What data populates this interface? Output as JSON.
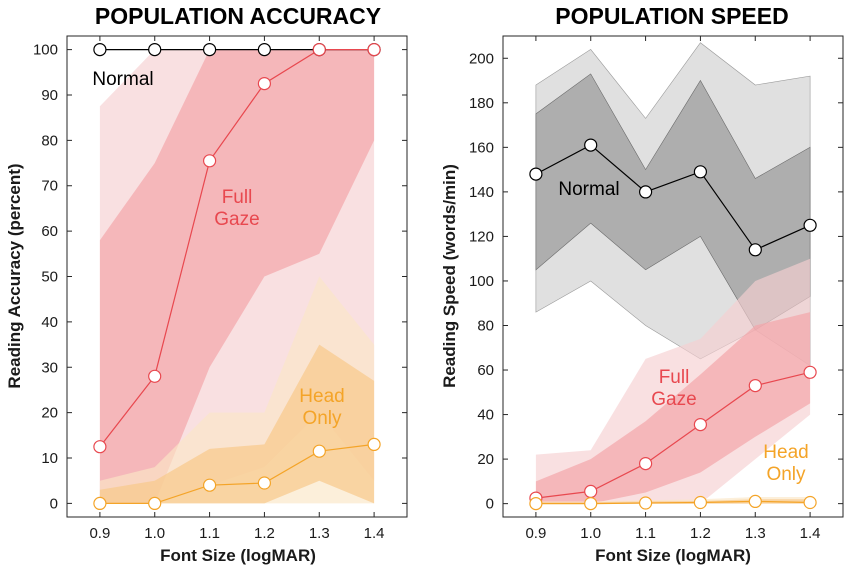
{
  "colors": {
    "normal": "#000000",
    "normal_band_outer": "#dadada",
    "normal_band_inner": "#a8a8a8",
    "full_gaze": "#e8484f",
    "full_gaze_band_outer": "#f6cfd1",
    "full_gaze_band_inner": "#f3a5a9",
    "head_only": "#f4a428",
    "head_only_band_outer": "#fbe6c6",
    "head_only_band_inner": "#f8c98a"
  },
  "chart_data": [
    {
      "type": "line",
      "title": "POPULATION ACCURACY",
      "xlabel": "Font Size (logMAR)",
      "ylabel": "Reading Accuracy (percent)",
      "xlim": [
        0.84,
        1.46
      ],
      "ylim": [
        -3,
        103
      ],
      "xticks": [
        "0.9",
        "1.0",
        "1.1",
        "1.2",
        "1.3",
        "1.4"
      ],
      "yticks": [
        "0",
        "10",
        "20",
        "30",
        "40",
        "50",
        "60",
        "70",
        "80",
        "90",
        "100"
      ],
      "x": [
        0.9,
        1.0,
        1.1,
        1.2,
        1.3,
        1.4
      ],
      "series": [
        {
          "name": "Normal",
          "label": "Normal",
          "values": [
            100,
            100,
            100,
            100,
            100,
            100
          ],
          "band_outer": {
            "lower": [
              100,
              100,
              100,
              100,
              100,
              100
            ],
            "upper": [
              100,
              100,
              100,
              100,
              100,
              100
            ]
          },
          "band_inner": {
            "lower": [
              100,
              100,
              100,
              100,
              100,
              100
            ],
            "upper": [
              100,
              100,
              100,
              100,
              100,
              100
            ]
          }
        },
        {
          "name": "Full Gaze",
          "label": "Full\nGaze",
          "values": [
            12.5,
            28,
            75.5,
            92.5,
            100,
            100
          ],
          "band_outer": {
            "lower": [
              0,
              0,
              4,
              8,
              20,
              5
            ],
            "upper": [
              87.5,
              100,
              100,
              100,
              100,
              100
            ]
          },
          "band_inner": {
            "lower": [
              0,
              0,
              30,
              50,
              55,
              80
            ],
            "upper": [
              58,
              75,
              100,
              100,
              100,
              100
            ]
          }
        },
        {
          "name": "Head Only",
          "label": "Head\nOnly",
          "values": [
            0,
            0,
            4,
            4.5,
            11.5,
            13
          ],
          "band_outer": {
            "lower": [
              0,
              0,
              0,
              0,
              0,
              0
            ],
            "upper": [
              5,
              8,
              20,
              20,
              50,
              35
            ]
          },
          "band_inner": {
            "lower": [
              0,
              0,
              0,
              0,
              5,
              0
            ],
            "upper": [
              3,
              5,
              12,
              13,
              35,
              27
            ]
          }
        }
      ]
    },
    {
      "type": "line",
      "title": "POPULATION SPEED",
      "xlabel": "Font Size (logMAR)",
      "ylabel": "Reading Speed (words/min)",
      "xlim": [
        0.84,
        1.46
      ],
      "ylim": [
        -6,
        210
      ],
      "xticks": [
        "0.9",
        "1.0",
        "1.1",
        "1.2",
        "1.3",
        "1.4"
      ],
      "yticks": [
        "0",
        "20",
        "40",
        "60",
        "80",
        "100",
        "120",
        "140",
        "160",
        "180",
        "200"
      ],
      "x": [
        0.9,
        1.0,
        1.1,
        1.2,
        1.3,
        1.4
      ],
      "series": [
        {
          "name": "Normal",
          "label": "Normal",
          "values": [
            148,
            161,
            140,
            149,
            114,
            125
          ],
          "band_outer": {
            "lower": [
              86,
              100,
              80,
              65,
              78,
              62
            ],
            "upper": [
              188,
              204,
              173,
              207,
              188,
              192
            ]
          },
          "band_inner": {
            "lower": [
              105,
              126,
              105,
              120,
              78,
              93
            ],
            "upper": [
              175,
              193,
              150,
              190,
              146,
              160
            ]
          }
        },
        {
          "name": "Full Gaze",
          "label": "Full\nGaze",
          "values": [
            2.5,
            5.5,
            18,
            35.5,
            53,
            59
          ],
          "band_outer": {
            "lower": [
              0,
              0,
              0,
              0,
              20,
              40
            ],
            "upper": [
              22,
              24,
              65,
              74,
              100,
              110
            ]
          },
          "band_inner": {
            "lower": [
              0,
              0,
              5,
              14,
              30,
              45
            ],
            "upper": [
              10,
              20,
              37,
              58,
              80,
              86
            ]
          }
        },
        {
          "name": "Head Only",
          "label": "Head\nOnly",
          "values": [
            0,
            0,
            0.3,
            0.5,
            1,
            0.5
          ],
          "band_outer": {
            "lower": [
              0,
              0,
              0,
              0,
              0,
              0
            ],
            "upper": [
              1,
              1,
              1.5,
              2,
              3,
              3
            ]
          },
          "band_inner": {
            "lower": [
              0,
              0,
              0,
              0,
              0,
              0
            ],
            "upper": [
              0.6,
              0.6,
              1,
              1.2,
              2,
              2
            ]
          }
        }
      ]
    }
  ]
}
